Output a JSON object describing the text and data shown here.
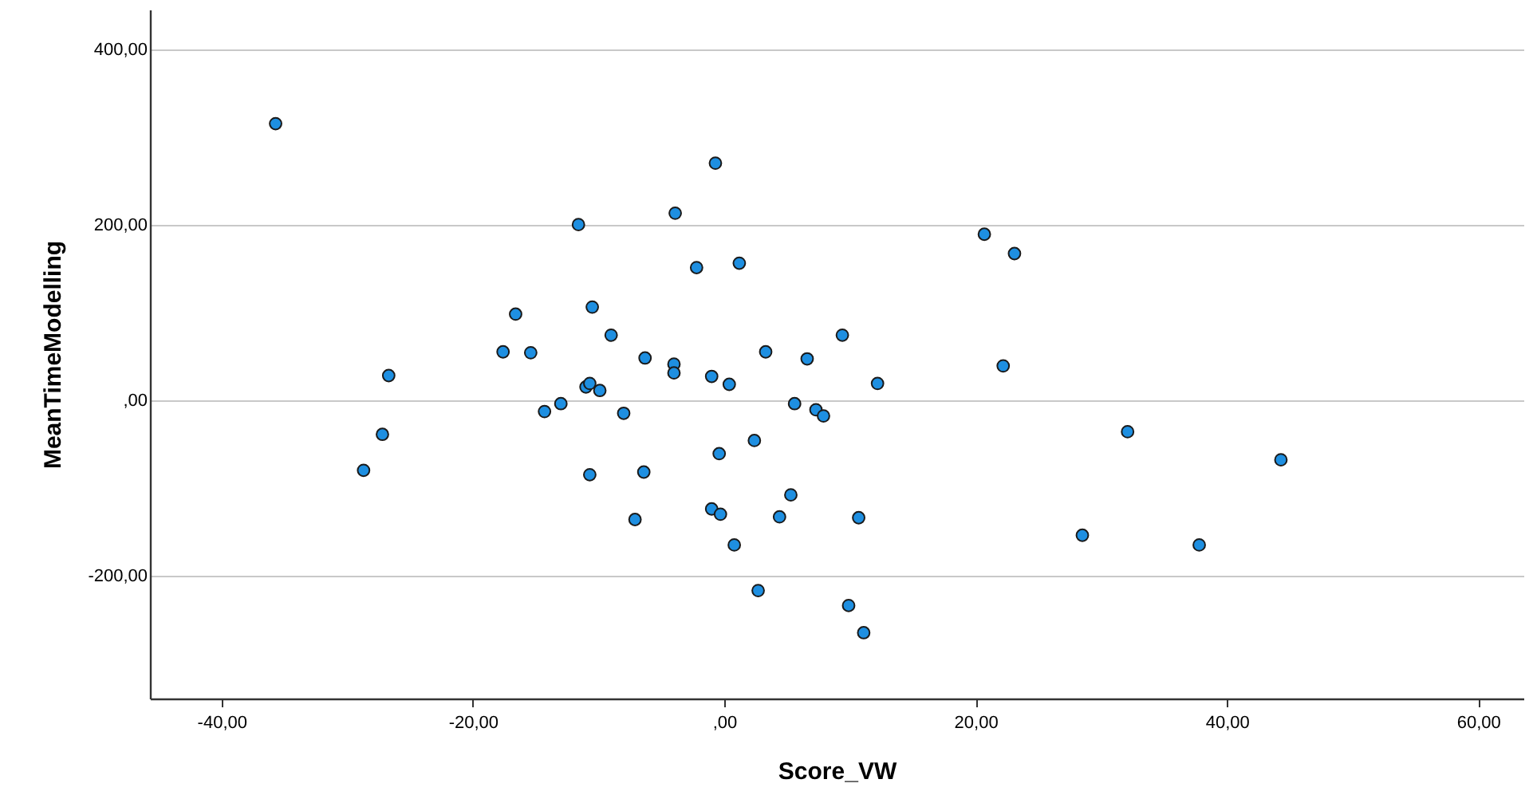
{
  "chart_data": {
    "type": "scatter",
    "xlabel": "Score_VW",
    "ylabel": "MeanTimeModelling",
    "x": [
      -35.7,
      -0.7,
      -11.6,
      -3.9,
      -2.2,
      1.2,
      20.7,
      23.1,
      -26.7,
      -27.2,
      -28.7,
      -16.6,
      -17.6,
      -15.4,
      -10.5,
      -9.0,
      -6.3,
      -4.0,
      -4.0,
      -1.0,
      0.4,
      3.3,
      6.6,
      9.4,
      -11.0,
      -10.7,
      -9.9,
      -14.3,
      -13.0,
      -8.0,
      5.6,
      7.3,
      7.9,
      2.4,
      -0.4,
      -10.7,
      -6.4,
      -7.1,
      -1.0,
      -0.3,
      5.3,
      4.4,
      0.8,
      2.7,
      22.2,
      12.2,
      32.1,
      44.3,
      10.7,
      28.5,
      37.8,
      9.9,
      11.1
    ],
    "series": [
      {
        "color": "#1e8fe1",
        "values": [
          315,
          270,
          200,
          213,
          151,
          156,
          189,
          167,
          28,
          -39,
          -80,
          98,
          55,
          54,
          106,
          74,
          48,
          41,
          31,
          27,
          18,
          55,
          47,
          74,
          15,
          19,
          11,
          -13,
          -4,
          -15,
          -4,
          -11,
          -18,
          -46,
          -61,
          -85,
          -82,
          -136,
          -124,
          -130,
          -108,
          -133,
          -165,
          -217,
          39,
          19,
          -36,
          -68,
          -134,
          -154,
          -165,
          -234,
          -265
        ]
      }
    ],
    "xlim": [
      -45.7,
      63.6
    ],
    "ylim": [
      -340,
      445
    ],
    "xticks": [
      {
        "value": -40,
        "label": "-40,00"
      },
      {
        "value": -20,
        "label": "-20,00"
      },
      {
        "value": 0,
        "label": ",00"
      },
      {
        "value": 20,
        "label": "20,00"
      },
      {
        "value": 40,
        "label": "40,00"
      },
      {
        "value": 60,
        "label": "60,00"
      }
    ],
    "yticks": [
      {
        "value": -200,
        "label": "-200,00"
      },
      {
        "value": 0,
        "label": ",00"
      },
      {
        "value": 200,
        "label": "200,00"
      },
      {
        "value": 400,
        "label": "400,00"
      }
    ],
    "grid": "y",
    "marker": "circle"
  }
}
